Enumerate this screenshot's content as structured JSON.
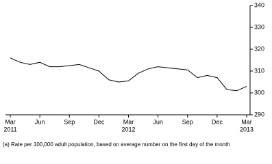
{
  "chart_data": {
    "type": "line",
    "categories": [
      "Mar",
      null,
      null,
      "Jun",
      null,
      null,
      "Sep",
      null,
      null,
      "Dec",
      null,
      null,
      "Mar",
      null,
      null,
      "Jun",
      null,
      null,
      "Sep",
      null,
      null,
      "Dec",
      null,
      null,
      "Mar"
    ],
    "category_years": [
      "2011",
      null,
      null,
      null,
      null,
      null,
      null,
      null,
      null,
      null,
      null,
      null,
      "2012",
      null,
      null,
      null,
      null,
      null,
      null,
      null,
      null,
      null,
      null,
      null,
      "2013"
    ],
    "series": [
      {
        "color": "#000000",
        "values": [
          316,
          314,
          313,
          314,
          312,
          312,
          312.5,
          313,
          311.5,
          310,
          306,
          305,
          305.5,
          309,
          311,
          312,
          311.5,
          311,
          310.5,
          307,
          308,
          307,
          301.5,
          301,
          303
        ]
      }
    ],
    "ylim": [
      290,
      340
    ],
    "yticks": [
      290,
      300,
      310,
      320,
      330,
      340
    ],
    "footnote": "(a) Rate per 100,000 adult population, based on average number on the first day of the month"
  }
}
